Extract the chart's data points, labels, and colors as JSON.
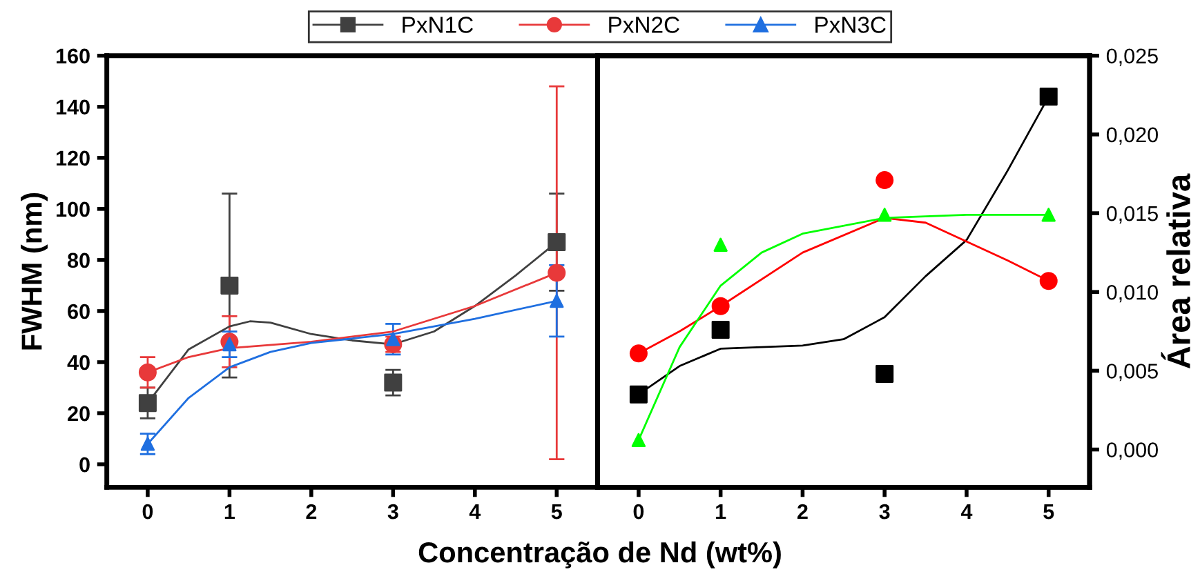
{
  "chart_data": [
    {
      "type": "scatter",
      "xlabel": "Concentração de Nd (wt%)",
      "ylabel": "FWHM (nm)",
      "xlim": [
        -0.5,
        5.5
      ],
      "xticks": [
        0,
        1,
        2,
        3,
        4,
        5
      ],
      "ylim": [
        -9,
        160
      ],
      "yticks": [
        0,
        20,
        40,
        60,
        80,
        100,
        120,
        140,
        160
      ],
      "legend": "top",
      "grid": false,
      "series": [
        {
          "name": "PxN1C",
          "color": "#404040",
          "marker": "square",
          "x": [
            0,
            1,
            3,
            5
          ],
          "values": [
            24,
            70,
            32,
            87
          ],
          "errors": [
            [
              18,
              30
            ],
            [
              34,
              106
            ],
            [
              27,
              37
            ],
            [
              68,
              106
            ]
          ]
        },
        {
          "name": "PxN2C",
          "color": "#e8393a",
          "marker": "circle",
          "x": [
            0,
            1,
            3,
            5
          ],
          "values": [
            36,
            48,
            47,
            75
          ],
          "errors": [
            [
              30,
              42
            ],
            [
              38,
              58
            ],
            [
              44,
              50
            ],
            [
              2,
              148
            ]
          ]
        },
        {
          "name": "PxN3C",
          "color": "#1f6fe0",
          "marker": "triangle",
          "x": [
            0,
            1,
            3,
            5
          ],
          "values": [
            8,
            47,
            49,
            64
          ],
          "errors": [
            [
              4,
              12
            ],
            [
              42,
              52
            ],
            [
              43,
              55
            ],
            [
              50,
              78
            ]
          ]
        },
        {
          "type": "line",
          "color": "#404040",
          "marker": "none",
          "x": [
            0,
            0.5,
            1,
            1.25,
            1.5,
            2,
            2.5,
            3,
            3.5,
            4,
            4.5,
            5
          ],
          "values": [
            24,
            45,
            54,
            56,
            55.5,
            51,
            48.5,
            47,
            52,
            62,
            74,
            87
          ]
        },
        {
          "type": "line",
          "color": "#e8393a",
          "marker": "none",
          "x": [
            0,
            0.5,
            1,
            2,
            3,
            4,
            5
          ],
          "values": [
            36,
            42,
            45.5,
            48,
            52,
            62,
            75
          ]
        },
        {
          "type": "line",
          "color": "#1f6fe0",
          "marker": "none",
          "x": [
            0,
            0.5,
            1,
            1.5,
            2,
            3,
            4,
            5
          ],
          "values": [
            8,
            26,
            38,
            44,
            47.5,
            51,
            57,
            64
          ]
        }
      ]
    },
    {
      "type": "scatter",
      "y2label": "Área relativa",
      "xlim": [
        -0.5,
        5.5
      ],
      "xticks": [
        0,
        1,
        2,
        3,
        4,
        5
      ],
      "y2lim": [
        -0.0024,
        0.025
      ],
      "y2ticks": [
        {
          "value": 0,
          "label": "0,000"
        },
        {
          "value": 0.005,
          "label": "0,005"
        },
        {
          "value": 0.01,
          "label": "0,010"
        },
        {
          "value": 0.015,
          "label": "0,015"
        },
        {
          "value": 0.02,
          "label": "0,020"
        },
        {
          "value": 0.025,
          "label": "0,025"
        }
      ],
      "grid": false,
      "series": [
        {
          "color": "#000000",
          "marker": "square",
          "axis": "y2",
          "x": [
            0,
            1,
            3,
            5
          ],
          "values": [
            0.0035,
            0.0076,
            0.0048,
            0.0224
          ]
        },
        {
          "color": "#ff0000",
          "marker": "circle",
          "axis": "y2",
          "x": [
            0,
            1,
            3,
            5
          ],
          "values": [
            0.0061,
            0.0091,
            0.0171,
            0.0107
          ]
        },
        {
          "color": "#00ff00",
          "marker": "triangle",
          "axis": "y2",
          "x": [
            0,
            1,
            3,
            5
          ],
          "values": [
            0.0006,
            0.013,
            0.0149,
            0.0149
          ]
        },
        {
          "type": "line",
          "color": "#000000",
          "marker": "none",
          "axis": "y2",
          "x": [
            0,
            0.5,
            1,
            2,
            2.5,
            3,
            3.5,
            4,
            4.5,
            5
          ],
          "values": [
            0.0035,
            0.0053,
            0.0064,
            0.0066,
            0.007,
            0.0084,
            0.011,
            0.0133,
            0.0177,
            0.0224
          ]
        },
        {
          "type": "line",
          "color": "#ff0000",
          "marker": "none",
          "axis": "y2",
          "x": [
            0,
            0.5,
            1,
            2,
            3,
            3.5,
            4.5,
            5
          ],
          "values": [
            0.0061,
            0.0075,
            0.0091,
            0.0125,
            0.0147,
            0.0144,
            0.012,
            0.0107
          ]
        },
        {
          "type": "line",
          "color": "#00ff00",
          "marker": "none",
          "axis": "y2",
          "x": [
            0,
            0.5,
            1,
            1.5,
            2,
            3,
            4,
            5
          ],
          "values": [
            0.0006,
            0.0065,
            0.0104,
            0.0125,
            0.0137,
            0.0147,
            0.0149,
            0.0149
          ]
        }
      ]
    }
  ]
}
